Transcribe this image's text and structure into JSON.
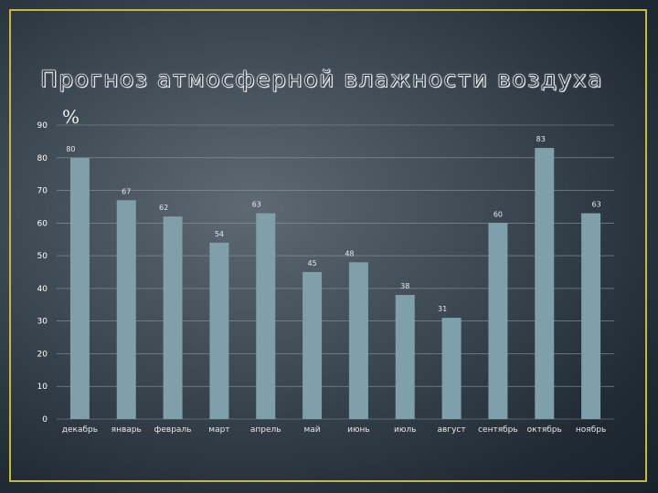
{
  "slide": {
    "title": "Прогноз атмосферной влажности воздуха",
    "unit": "%"
  },
  "colors": {
    "bar": "#7f9fab",
    "frame": "#c9b93a",
    "grid": "#8a969e"
  },
  "chart_data": {
    "type": "bar",
    "title": "",
    "xlabel": "",
    "ylabel": "%",
    "ylim": [
      0,
      90
    ],
    "ytick_step": 10,
    "grid": true,
    "categories": [
      "декабрь",
      "январь",
      "февраль",
      "март",
      "апрель",
      "май",
      "июнь",
      "июль",
      "август",
      "сентябрь",
      "октябрь",
      "ноябрь"
    ],
    "series": [
      {
        "values": [
          80,
          67,
          62,
          54,
          63,
          45,
          48,
          38,
          31,
          60,
          83,
          63
        ]
      }
    ]
  }
}
